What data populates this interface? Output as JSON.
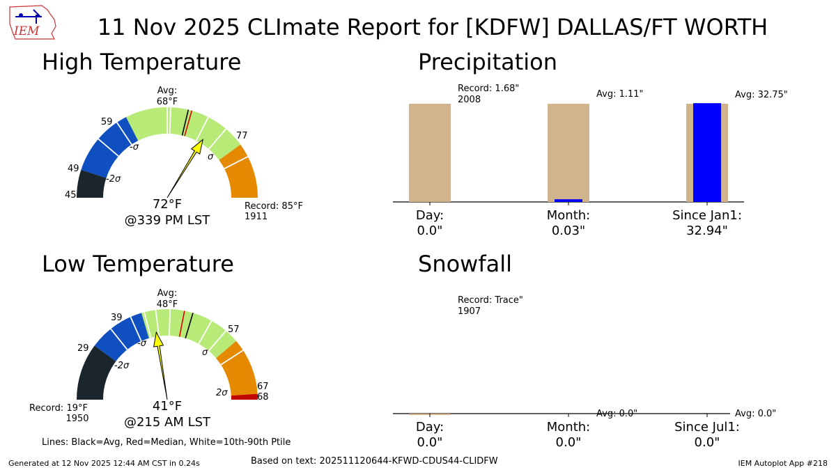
{
  "title": "11 Nov 2025 CLImate Report for [KDFW] DALLAS/FT WORTH",
  "logo_text": "IEM",
  "legend_note": "Lines: Black=Avg, Red=Median, White=10th-90th Ptile",
  "footer": {
    "generated": "Generated at 12 Nov 2025 12:44 AM CST in 0.24s",
    "based_on": "Based on text: 202511120644-KFWD-CDUS44-CLIDFW",
    "app": "IEM Autoplot App #218"
  },
  "colors": {
    "bin_below_2sigma": "#1b262c",
    "bin_2sigma": "#0f4fc0",
    "bin_sigma": "#b8ea78",
    "bin_above_sigma": "#e58a00",
    "bin_above_2sigma": "#c00000",
    "arrow": "#ffff00",
    "precip_bar": "#d2b48c",
    "observed_bar": "#0000ff"
  },
  "chart_data": [
    {
      "type": "gauge",
      "name": "high_temperature",
      "title": "High Temperature",
      "units": "°F",
      "range": [
        45,
        85
      ],
      "tick_labels": [
        "45",
        "49",
        "59",
        "77"
      ],
      "sigma_labels": [
        "-2σ",
        "-σ",
        "σ"
      ],
      "bins": [
        {
          "from": 45,
          "to": 49,
          "color": "#1b262c"
        },
        {
          "from": 49,
          "to": 59,
          "color": "#0f4fc0"
        },
        {
          "from": 59,
          "to": 77,
          "color": "#b8ea78"
        },
        {
          "from": 77,
          "to": 85,
          "color": "#e58a00"
        }
      ],
      "average": 68,
      "median": 68.5,
      "percentile_lines": [
        54,
        57.5,
        65,
        65.5,
        71,
        74,
        79
      ],
      "observed": 72,
      "avg_label": "Avg:",
      "avg_value_label": "68°F",
      "observed_label": "72°F",
      "time_label": "@339 PM LST",
      "record_label": "Record: 85°F",
      "record_year": "1911"
    },
    {
      "type": "gauge",
      "name": "low_temperature",
      "title": "Low Temperature",
      "units": "°F",
      "range": [
        19,
        68
      ],
      "tick_labels": [
        "29",
        "39",
        "57",
        "67",
        "68"
      ],
      "sigma_labels": [
        "-2σ",
        "-σ",
        "σ",
        "2σ"
      ],
      "bins": [
        {
          "from": 19,
          "to": 29,
          "color": "#1b262c"
        },
        {
          "from": 29,
          "to": 39,
          "color": "#0f4fc0"
        },
        {
          "from": 39,
          "to": 57,
          "color": "#b8ea78"
        },
        {
          "from": 57,
          "to": 67,
          "color": "#e58a00"
        },
        {
          "from": 67,
          "to": 68,
          "color": "#c00000"
        }
      ],
      "average": 48,
      "median": 46.5,
      "percentile_lines": [
        33,
        37,
        39.5,
        41.5,
        44,
        51.5,
        54.5,
        59
      ],
      "observed": 41,
      "avg_label": "Avg:",
      "avg_value_label": "48°F",
      "observed_label": "41°F",
      "time_label": "@215 AM LST",
      "record_label": "Record: 19°F",
      "record_year": "1950"
    },
    {
      "type": "bar",
      "name": "precipitation",
      "title": "Precipitation",
      "units": "inches",
      "categories": [
        "Day:",
        "Month:",
        "Since Jan1:"
      ],
      "observed_labels": [
        "0.0\"",
        "0.03\"",
        "32.94\""
      ],
      "series": [
        {
          "name": "reference",
          "values": [
            1.0,
            1.0,
            1.0
          ]
        },
        {
          "name": "observed",
          "values": [
            0.0,
            0.027,
            1.006
          ]
        }
      ],
      "annotations": [
        "Record: 1.68\"",
        "2008",
        "Avg: 1.11\"",
        "Avg: 32.75\""
      ],
      "ylim": [
        0,
        1.05
      ]
    },
    {
      "type": "bar",
      "name": "snowfall",
      "title": "Snowfall",
      "units": "inches",
      "categories": [
        "Day:",
        "Month:",
        "Since Jul1:"
      ],
      "observed_labels": [
        "0.0\"",
        "0.0\"",
        "0.0\""
      ],
      "series": [
        {
          "name": "reference",
          "values": [
            0.0001,
            0,
            0
          ]
        },
        {
          "name": "observed",
          "values": [
            0,
            0,
            0
          ]
        }
      ],
      "annotations": [
        "Record: Trace\"",
        "1907",
        "Avg: 0.0\"",
        "Avg: 0.0\""
      ],
      "ylim": [
        0,
        1.05
      ]
    }
  ]
}
